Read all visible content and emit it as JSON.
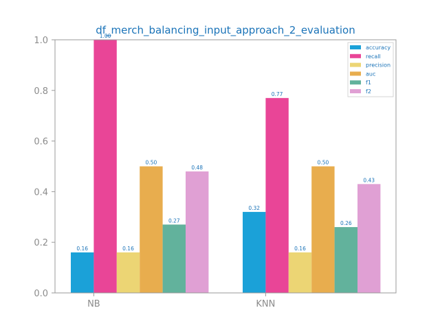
{
  "chart_data": {
    "type": "bar",
    "title": "df_merch_balancing_input_approach_2_evaluation",
    "xlabel": "",
    "ylabel": "",
    "ylim": [
      0,
      1.0
    ],
    "yticks": [
      "0.0",
      "0.2",
      "0.4",
      "0.6",
      "0.8",
      "1.0"
    ],
    "categories": [
      "NB",
      "KNN"
    ],
    "legend_position": "top-right",
    "grid": false,
    "series": [
      {
        "name": "accuracy",
        "color": "#1ba1d8",
        "values": [
          0.16,
          0.32
        ],
        "labels": [
          "0.16",
          "0.32"
        ]
      },
      {
        "name": "recall",
        "color": "#e94597",
        "values": [
          1.0,
          0.77
        ],
        "labels": [
          "1.00",
          "0.77"
        ]
      },
      {
        "name": "precision",
        "color": "#ecd574",
        "values": [
          0.16,
          0.16
        ],
        "labels": [
          "0.16",
          "0.16"
        ]
      },
      {
        "name": "auc",
        "color": "#e8ad4e",
        "values": [
          0.5,
          0.5
        ],
        "labels": [
          "0.50",
          "0.50"
        ]
      },
      {
        "name": "f1",
        "color": "#62b29c",
        "values": [
          0.27,
          0.26
        ],
        "labels": [
          "0.27",
          "0.26"
        ]
      },
      {
        "name": "f2",
        "color": "#e0a0d4",
        "values": [
          0.48,
          0.43
        ],
        "labels": [
          "0.48",
          "0.43"
        ]
      }
    ],
    "colors": {
      "title": "#1a73b8",
      "tick_label": "#8c8c8c",
      "axis": "#999999",
      "value_label": "#1a73b8"
    }
  }
}
